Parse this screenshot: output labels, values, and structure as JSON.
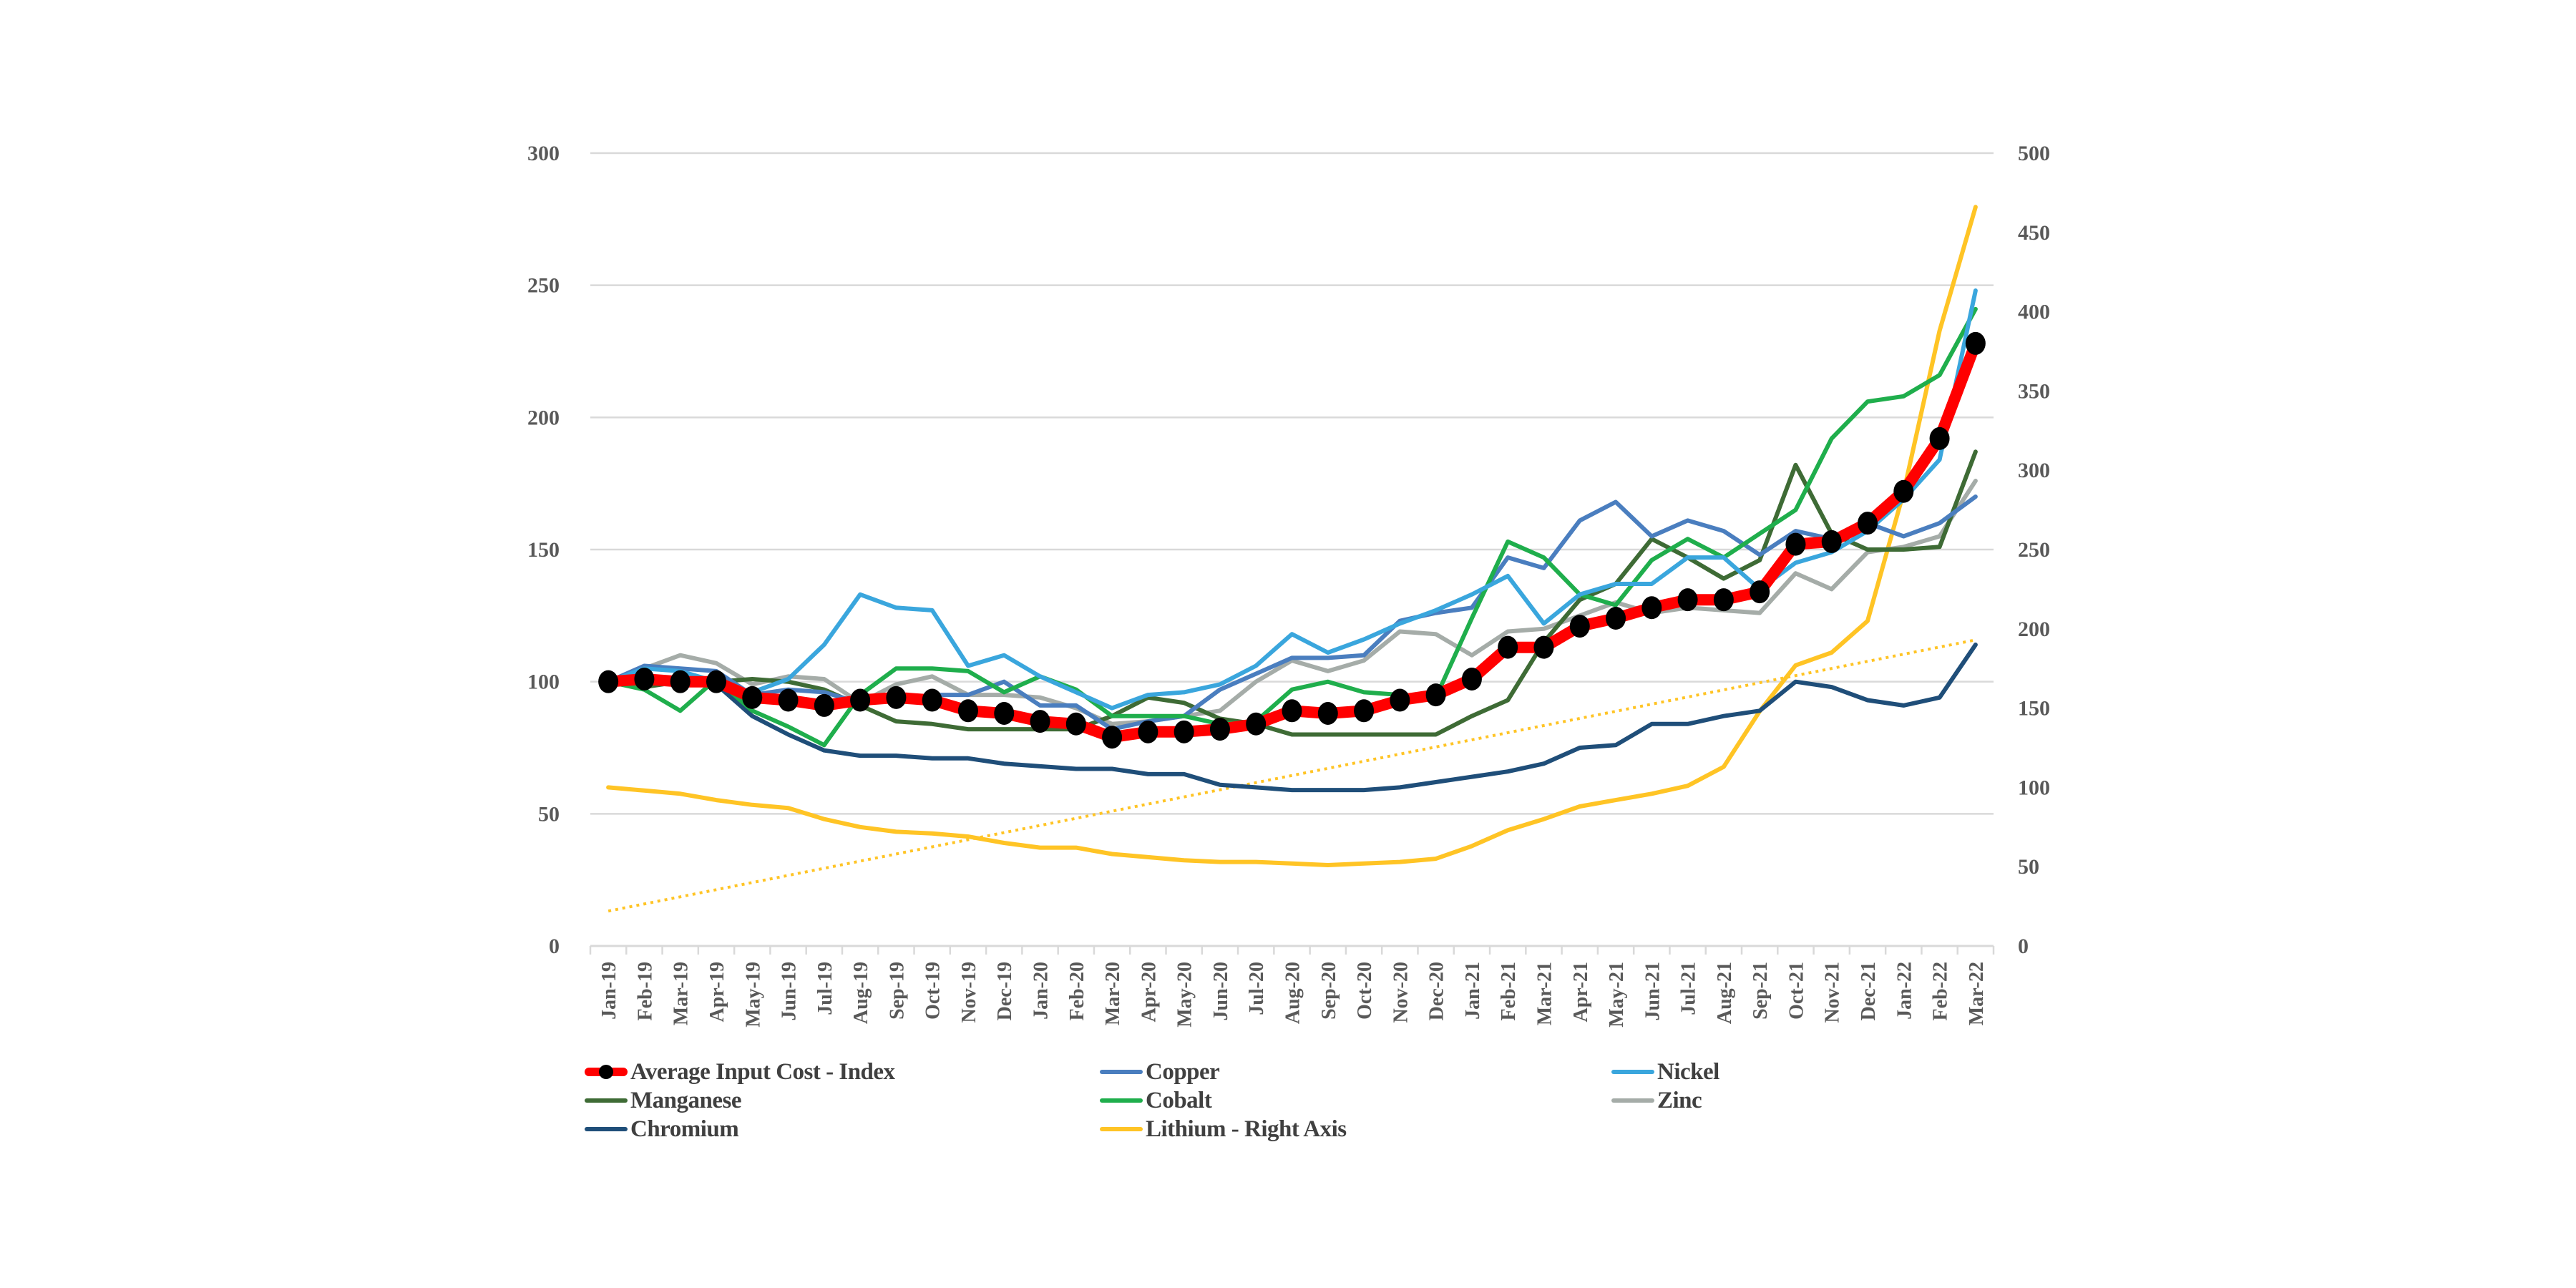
{
  "chart_data": {
    "type": "line",
    "title": "",
    "xlabel": "",
    "ylabel": "",
    "y2label": "",
    "ylim": [
      0,
      300
    ],
    "y2lim": [
      0,
      500
    ],
    "yticks": [
      0,
      50,
      100,
      150,
      200,
      250,
      300
    ],
    "y2ticks": [
      0,
      50,
      100,
      150,
      200,
      250,
      300,
      350,
      400,
      450,
      500
    ],
    "grid": true,
    "legend_position": "bottom",
    "categories": [
      "Jan-19",
      "Feb-19",
      "Mar-19",
      "Apr-19",
      "May-19",
      "Jun-19",
      "Jul-19",
      "Aug-19",
      "Sep-19",
      "Oct-19",
      "Nov-19",
      "Dec-19",
      "Jan-20",
      "Feb-20",
      "Mar-20",
      "Apr-20",
      "May-20",
      "Jun-20",
      "Jul-20",
      "Aug-20",
      "Sep-20",
      "Oct-20",
      "Nov-20",
      "Dec-20",
      "Jan-21",
      "Feb-21",
      "Mar-21",
      "Apr-21",
      "May-21",
      "Jun-21",
      "Jul-21",
      "Aug-21",
      "Sep-21",
      "Oct-21",
      "Nov-21",
      "Dec-21",
      "Jan-22",
      "Feb-22",
      "Mar-22"
    ],
    "series": [
      {
        "key": "average",
        "name": "Average Input Cost - Index",
        "axis": "left",
        "color": "#ff0000",
        "marker_color": "#000000",
        "style": "thick-markers",
        "values": [
          100,
          101,
          100,
          100,
          94,
          93,
          91,
          93,
          94,
          93,
          89,
          88,
          85,
          84,
          79,
          81,
          81,
          82,
          84,
          89,
          88,
          89,
          93,
          95,
          101,
          113,
          113,
          121,
          124,
          128,
          131,
          131,
          134,
          152,
          153,
          160,
          172,
          192,
          228
        ]
      },
      {
        "key": "copper",
        "name": "Copper",
        "axis": "left",
        "color": "#4a7ebf",
        "style": "line",
        "values": [
          100,
          106,
          105,
          104,
          95,
          97,
          96,
          92,
          93,
          95,
          95,
          100,
          91,
          91,
          82,
          85,
          87,
          97,
          103,
          109,
          109,
          110,
          123,
          126,
          128,
          147,
          143,
          161,
          168,
          155,
          161,
          157,
          148,
          157,
          154,
          160,
          155,
          160,
          170
        ]
      },
      {
        "key": "nickel",
        "name": "Nickel",
        "axis": "left",
        "color": "#3aa6dd",
        "style": "line",
        "values": [
          100,
          105,
          104,
          100,
          96,
          101,
          114,
          133,
          128,
          127,
          106,
          110,
          102,
          96,
          90,
          95,
          96,
          99,
          106,
          118,
          111,
          116,
          122,
          127,
          133,
          140,
          122,
          133,
          137,
          137,
          147,
          147,
          135,
          145,
          149,
          157,
          169,
          184,
          248
        ]
      },
      {
        "key": "manganese",
        "name": "Manganese",
        "axis": "left",
        "color": "#3e6b35",
        "style": "line",
        "values": [
          100,
          98,
          100,
          100,
          101,
          100,
          97,
          91,
          85,
          84,
          82,
          82,
          82,
          82,
          87,
          94,
          92,
          86,
          84,
          80,
          80,
          80,
          80,
          80,
          87,
          93,
          115,
          131,
          137,
          154,
          147,
          139,
          146,
          182,
          156,
          150,
          150,
          151,
          187
        ]
      },
      {
        "key": "cobalt",
        "name": "Cobalt",
        "axis": "left",
        "color": "#1fae4c",
        "style": "line",
        "values": [
          100,
          97,
          89,
          101,
          89,
          83,
          76,
          95,
          105,
          105,
          104,
          96,
          102,
          97,
          87,
          87,
          87,
          84,
          85,
          97,
          100,
          96,
          95,
          94,
          124,
          153,
          147,
          133,
          129,
          146,
          154,
          147,
          156,
          165,
          192,
          206,
          208,
          216,
          241
        ]
      },
      {
        "key": "zinc",
        "name": "Zinc",
        "axis": "left",
        "color": "#a5aca8",
        "style": "line",
        "values": [
          100,
          105,
          110,
          107,
          99,
          102,
          101,
          92,
          99,
          102,
          95,
          95,
          94,
          90,
          84,
          85,
          87,
          89,
          100,
          108,
          104,
          108,
          119,
          118,
          110,
          119,
          120,
          125,
          130,
          126,
          128,
          127,
          126,
          141,
          135,
          149,
          151,
          155,
          176
        ]
      },
      {
        "key": "chromium",
        "name": "Chromium",
        "axis": "left",
        "color": "#1f4e79",
        "style": "line",
        "values": [
          100,
          100,
          100,
          99,
          87,
          80,
          74,
          72,
          72,
          71,
          71,
          69,
          68,
          67,
          67,
          65,
          65,
          61,
          60,
          59,
          59,
          59,
          60,
          62,
          64,
          66,
          69,
          75,
          76,
          84,
          84,
          87,
          89,
          100,
          98,
          93,
          91,
          94,
          114
        ]
      },
      {
        "key": "lithium",
        "name": "Lithium - Right Axis",
        "axis": "right",
        "color": "#ffc425",
        "style": "line",
        "values": [
          100,
          98,
          96,
          92,
          89,
          87,
          80,
          75,
          72,
          71,
          69,
          65,
          62,
          62,
          58,
          56,
          54,
          53,
          53,
          52,
          51,
          52,
          53,
          55,
          63,
          73,
          80,
          88,
          92,
          96,
          101,
          113,
          148,
          177,
          185,
          205,
          286,
          388,
          466
        ]
      },
      {
        "key": "lithium_trend",
        "name": "Lithium trend",
        "axis": "right",
        "color": "#ffc425",
        "style": "dotted",
        "show_in_legend": false,
        "values_linear_endpoints": [
          22,
          193
        ]
      }
    ]
  },
  "legend": {
    "items": [
      {
        "key": "average",
        "label": "Average Input Cost - Index"
      },
      {
        "key": "copper",
        "label": "Copper"
      },
      {
        "key": "nickel",
        "label": "Nickel"
      },
      {
        "key": "manganese",
        "label": "Manganese"
      },
      {
        "key": "cobalt",
        "label": "Cobalt"
      },
      {
        "key": "zinc",
        "label": "Zinc"
      },
      {
        "key": "chromium",
        "label": "Chromium"
      },
      {
        "key": "lithium",
        "label": "Lithium - Right Axis"
      }
    ]
  }
}
